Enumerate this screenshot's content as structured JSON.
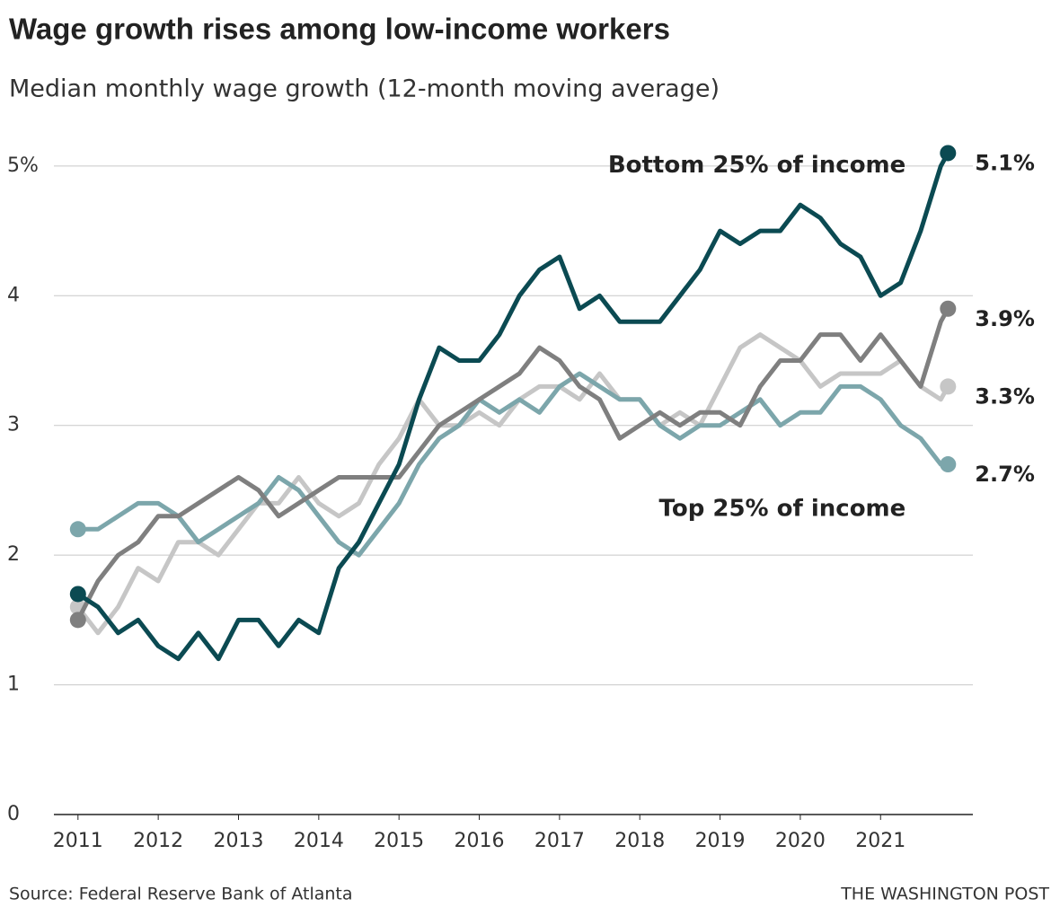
{
  "chart_data": {
    "type": "line",
    "title": "Wage growth rises among low-income workers",
    "subtitle": "Median monthly wage growth (12-month moving average)",
    "source": "Source: Federal Reserve Bank of Atlanta",
    "credit": "THE WASHINGTON POST",
    "x": [
      2011,
      2011.25,
      2011.5,
      2011.75,
      2012,
      2012.25,
      2012.5,
      2012.75,
      2013,
      2013.25,
      2013.5,
      2013.75,
      2014,
      2014.25,
      2014.5,
      2014.75,
      2015,
      2015.25,
      2015.5,
      2015.75,
      2016,
      2016.25,
      2016.5,
      2016.75,
      2017,
      2017.25,
      2017.5,
      2017.75,
      2018,
      2018.25,
      2018.5,
      2018.75,
      2019,
      2019.25,
      2019.5,
      2019.75,
      2020,
      2020.25,
      2020.5,
      2020.75,
      2021,
      2021.25,
      2021.5,
      2021.75,
      2021.84
    ],
    "xlim": [
      2010.7,
      2022.15
    ],
    "xticks": [
      2011,
      2012,
      2013,
      2014,
      2015,
      2016,
      2017,
      2018,
      2019,
      2020,
      2021
    ],
    "ylim": [
      0,
      5.2
    ],
    "yticks": [
      0,
      1,
      2,
      3,
      4,
      {
        "value": 5,
        "label": "5%"
      }
    ],
    "grid": true,
    "series": [
      {
        "color": "#c6c6c6",
        "values": [
          1.6,
          1.4,
          1.6,
          1.9,
          1.8,
          2.1,
          2.1,
          2.0,
          2.2,
          2.4,
          2.4,
          2.6,
          2.4,
          2.3,
          2.4,
          2.7,
          2.9,
          3.2,
          3.0,
          3.0,
          3.1,
          3.0,
          3.2,
          3.3,
          3.3,
          3.2,
          3.4,
          3.2,
          3.2,
          3.0,
          3.1,
          3.0,
          3.3,
          3.6,
          3.7,
          3.6,
          3.5,
          3.3,
          3.4,
          3.4,
          3.4,
          3.5,
          3.3,
          3.2,
          3.3
        ],
        "value_labels": [
          null,
          null,
          null,
          null,
          null,
          null,
          null,
          null,
          null,
          null,
          null,
          null,
          null,
          null,
          null,
          null,
          null,
          null,
          null,
          null,
          null,
          null,
          null,
          null,
          null,
          null,
          null,
          null,
          null,
          null,
          null,
          null,
          null,
          null,
          null,
          null,
          null,
          null,
          null,
          null,
          null,
          null,
          null,
          null,
          "3.3%"
        ]
      },
      {
        "color": "#7ca6ab",
        "name": "Top 25% of income",
        "values": [
          2.2,
          2.2,
          2.3,
          2.4,
          2.4,
          2.3,
          2.1,
          2.2,
          2.3,
          2.4,
          2.6,
          2.5,
          2.3,
          2.1,
          2.0,
          2.2,
          2.4,
          2.7,
          2.9,
          3.0,
          3.2,
          3.1,
          3.2,
          3.1,
          3.3,
          3.4,
          3.3,
          3.2,
          3.2,
          3.0,
          2.9,
          3.0,
          3.0,
          3.1,
          3.2,
          3.0,
          3.1,
          3.1,
          3.3,
          3.3,
          3.2,
          3.0,
          2.9,
          2.7,
          2.7
        ],
        "value_labels": [
          null,
          null,
          null,
          null,
          null,
          null,
          null,
          null,
          null,
          null,
          null,
          null,
          null,
          null,
          null,
          null,
          null,
          null,
          null,
          null,
          null,
          null,
          null,
          null,
          null,
          null,
          null,
          null,
          null,
          null,
          null,
          null,
          null,
          null,
          null,
          null,
          null,
          null,
          null,
          null,
          null,
          null,
          null,
          null,
          "2.7%"
        ]
      },
      {
        "color": "#7f7f7f",
        "values": [
          1.5,
          1.8,
          2.0,
          2.1,
          2.3,
          2.3,
          2.4,
          2.5,
          2.6,
          2.5,
          2.3,
          2.4,
          2.5,
          2.6,
          2.6,
          2.6,
          2.6,
          2.8,
          3.0,
          3.1,
          3.2,
          3.3,
          3.4,
          3.6,
          3.5,
          3.3,
          3.2,
          2.9,
          3.0,
          3.1,
          3.0,
          3.1,
          3.1,
          3.0,
          3.3,
          3.5,
          3.5,
          3.7,
          3.7,
          3.5,
          3.7,
          3.5,
          3.3,
          3.8,
          3.9
        ],
        "value_labels": [
          null,
          null,
          null,
          null,
          null,
          null,
          null,
          null,
          null,
          null,
          null,
          null,
          null,
          null,
          null,
          null,
          null,
          null,
          null,
          null,
          null,
          null,
          null,
          null,
          null,
          null,
          null,
          null,
          null,
          null,
          null,
          null,
          null,
          null,
          null,
          null,
          null,
          null,
          null,
          null,
          null,
          null,
          null,
          null,
          "3.9%"
        ]
      },
      {
        "color": "#0b4a52",
        "name": "Bottom 25% of income",
        "values": [
          1.7,
          1.6,
          1.4,
          1.5,
          1.3,
          1.2,
          1.4,
          1.2,
          1.5,
          1.5,
          1.3,
          1.5,
          1.4,
          1.9,
          2.1,
          2.4,
          2.7,
          3.2,
          3.6,
          3.5,
          3.5,
          3.7,
          4.0,
          4.2,
          4.3,
          3.9,
          4.0,
          3.8,
          3.8,
          3.8,
          4.0,
          4.2,
          4.5,
          4.4,
          4.5,
          4.5,
          4.7,
          4.6,
          4.4,
          4.3,
          4.0,
          4.1,
          4.5,
          5.0,
          5.1
        ],
        "value_labels": [
          null,
          null,
          null,
          null,
          null,
          null,
          null,
          null,
          null,
          null,
          null,
          null,
          null,
          null,
          null,
          null,
          null,
          null,
          null,
          null,
          null,
          null,
          null,
          null,
          null,
          null,
          null,
          null,
          null,
          null,
          null,
          null,
          null,
          null,
          null,
          null,
          null,
          null,
          null,
          null,
          null,
          null,
          null,
          null,
          "5.1%"
        ]
      }
    ]
  }
}
